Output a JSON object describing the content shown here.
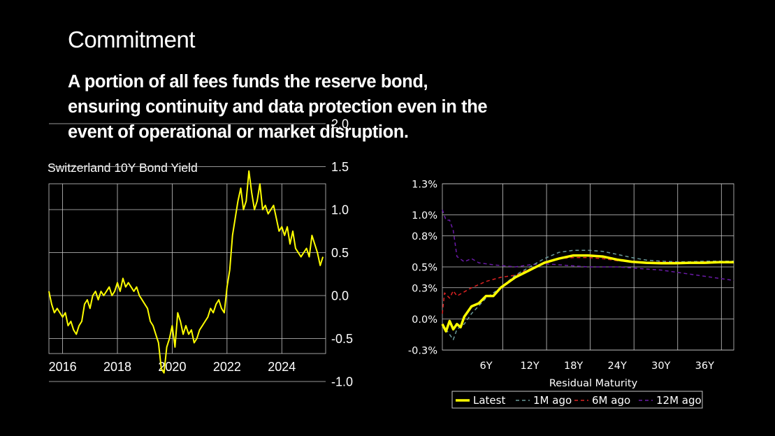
{
  "slide": {
    "title": "Commitment",
    "body": "A portion of all fees funds the reserve bond, ensuring continuity and data protection even in the event of operational or market disruption."
  },
  "colors": {
    "background": "#000000",
    "latest": "#ffff00",
    "m1": "#6a9a9a",
    "m6": "#dd2222",
    "m12": "#6a1aa8"
  },
  "chart_data": [
    {
      "type": "line",
      "title": "Switzerland 10Y Bond Yield",
      "xlim": [
        2015.5,
        2025.6
      ],
      "ylim": [
        -1.3,
        2.6
      ],
      "x_ticks": [
        2016,
        2018,
        2020,
        2022,
        2024
      ],
      "x_tick_labels": [
        "2016",
        "2018",
        "2020",
        "2022",
        "2024"
      ],
      "y_ticks": [
        2.0,
        1.5,
        1.0,
        0.5,
        0.0,
        -0.5,
        -1.0
      ],
      "y_tick_labels": [
        "2.0",
        "1.5",
        "1.0",
        "0.5",
        "0.0",
        "-0.5",
        "-1.0"
      ],
      "grid": true,
      "series": [
        {
          "color": "#ffff00",
          "x": [
            2015.5,
            2015.6,
            2015.7,
            2015.8,
            2015.9,
            2016.0,
            2016.1,
            2016.2,
            2016.3,
            2016.4,
            2016.5,
            2016.6,
            2016.7,
            2016.8,
            2016.9,
            2017.0,
            2017.1,
            2017.2,
            2017.3,
            2017.4,
            2017.5,
            2017.6,
            2017.7,
            2017.8,
            2017.9,
            2018.0,
            2018.1,
            2018.2,
            2018.3,
            2018.4,
            2018.5,
            2018.6,
            2018.7,
            2018.8,
            2018.9,
            2019.0,
            2019.1,
            2019.2,
            2019.3,
            2019.4,
            2019.5,
            2019.6,
            2019.7,
            2019.8,
            2019.9,
            2020.0,
            2020.1,
            2020.2,
            2020.3,
            2020.4,
            2020.5,
            2020.6,
            2020.7,
            2020.8,
            2020.9,
            2021.0,
            2021.1,
            2021.2,
            2021.3,
            2021.4,
            2021.5,
            2021.6,
            2021.7,
            2021.8,
            2021.9,
            2022.0,
            2022.1,
            2022.2,
            2022.3,
            2022.4,
            2022.5,
            2022.6,
            2022.7,
            2022.8,
            2022.9,
            2023.0,
            2023.1,
            2023.2,
            2023.3,
            2023.4,
            2023.5,
            2023.6,
            2023.7,
            2023.8,
            2023.9,
            2024.0,
            2024.1,
            2024.2,
            2024.3,
            2024.4,
            2024.5,
            2024.6,
            2024.7,
            2024.8,
            2024.9,
            2025.0,
            2025.1,
            2025.2,
            2025.3,
            2025.4,
            2025.5
          ],
          "y": [
            0.05,
            -0.1,
            -0.2,
            -0.15,
            -0.2,
            -0.25,
            -0.2,
            -0.35,
            -0.3,
            -0.4,
            -0.45,
            -0.35,
            -0.3,
            -0.1,
            -0.05,
            -0.15,
            0.0,
            0.05,
            -0.05,
            0.05,
            0.0,
            0.05,
            0.1,
            0.0,
            0.05,
            0.15,
            0.05,
            0.2,
            0.1,
            0.15,
            0.1,
            0.05,
            0.1,
            0.0,
            -0.05,
            -0.1,
            -0.15,
            -0.3,
            -0.35,
            -0.45,
            -0.55,
            -0.85,
            -0.9,
            -0.6,
            -0.5,
            -0.35,
            -0.6,
            -0.2,
            -0.3,
            -0.45,
            -0.35,
            -0.45,
            -0.4,
            -0.55,
            -0.5,
            -0.4,
            -0.35,
            -0.3,
            -0.25,
            -0.15,
            -0.2,
            -0.1,
            -0.05,
            -0.15,
            -0.2,
            0.1,
            0.3,
            0.7,
            0.9,
            1.1,
            1.25,
            1.0,
            1.1,
            1.45,
            1.2,
            1.0,
            1.1,
            1.3,
            1.0,
            1.05,
            0.95,
            1.0,
            1.05,
            0.9,
            0.75,
            0.8,
            0.7,
            0.8,
            0.6,
            0.75,
            0.55,
            0.5,
            0.45,
            0.5,
            0.55,
            0.45,
            0.7,
            0.6,
            0.5,
            0.35,
            0.45
          ]
        }
      ]
    },
    {
      "type": "line",
      "title": "",
      "xlabel": "Residual Maturity",
      "xlim": [
        0,
        40
      ],
      "ylim": [
        -0.3,
        1.3
      ],
      "x_ticks": [
        6,
        12,
        18,
        24,
        30,
        36
      ],
      "x_tick_labels": [
        "6Y",
        "12Y",
        "18Y",
        "24Y",
        "30Y",
        "36Y"
      ],
      "y_ticks": [
        1.3,
        1.0,
        0.8,
        0.5,
        0.3,
        0.0,
        -0.3
      ],
      "y_tick_labels": [
        "1.3%",
        "1.0%",
        "0.8%",
        "0.5%",
        "0.3%",
        "0.0%",
        "-0.3%"
      ],
      "grid": true,
      "legend_position": "bottom",
      "series": [
        {
          "name": "Latest",
          "color": "#ffff00",
          "dash": "solid",
          "x": [
            0,
            0.5,
            1,
            1.5,
            2,
            2.5,
            3,
            4,
            5,
            6,
            7,
            8,
            10,
            12,
            14,
            16,
            18,
            20,
            22,
            24,
            26,
            28,
            30,
            32,
            34,
            36,
            38,
            40
          ],
          "y": [
            -0.05,
            -0.12,
            -0.02,
            -0.1,
            -0.05,
            -0.08,
            0.02,
            0.12,
            0.15,
            0.22,
            0.22,
            0.3,
            0.4,
            0.47,
            0.54,
            0.58,
            0.61,
            0.61,
            0.6,
            0.57,
            0.55,
            0.54,
            0.535,
            0.535,
            0.54,
            0.54,
            0.545,
            0.545
          ]
        },
        {
          "name": "1M ago",
          "color": "#6a9a9a",
          "dash": "dashed",
          "x": [
            0,
            1,
            1.5,
            2,
            3,
            4,
            6,
            8,
            10,
            12,
            14,
            16,
            18,
            20,
            22,
            24,
            26,
            28,
            30,
            32,
            34,
            36,
            38,
            40
          ],
          "y": [
            -0.05,
            -0.15,
            -0.2,
            -0.1,
            -0.05,
            0.05,
            0.2,
            0.3,
            0.42,
            0.5,
            0.58,
            0.64,
            0.66,
            0.66,
            0.65,
            0.62,
            0.59,
            0.565,
            0.555,
            0.55,
            0.55,
            0.555,
            0.555,
            0.555
          ]
        },
        {
          "name": "6M ago",
          "color": "#dd2222",
          "dash": "dashed",
          "x": [
            0,
            0.3,
            1,
            1.5,
            2,
            4,
            6,
            8,
            10,
            12,
            14,
            16,
            18,
            20,
            22,
            24,
            26,
            28,
            30,
            32,
            34,
            36,
            38,
            40
          ],
          "y": [
            0.05,
            0.25,
            0.2,
            0.27,
            0.22,
            0.3,
            0.36,
            0.4,
            0.42,
            0.48,
            0.54,
            0.58,
            0.59,
            0.59,
            0.58,
            0.56,
            0.55,
            0.545,
            0.545,
            0.545,
            0.545,
            0.55,
            0.55,
            0.55
          ]
        },
        {
          "name": "12M ago",
          "color": "#6a1aa8",
          "dash": "dashed",
          "x": [
            0,
            0.5,
            1,
            1.5,
            2,
            3,
            4,
            5,
            7,
            10,
            12,
            14,
            16,
            18,
            20,
            22,
            24,
            26,
            28,
            30,
            32,
            34,
            36,
            38,
            40
          ],
          "y": [
            1.05,
            0.95,
            0.95,
            0.85,
            0.6,
            0.55,
            0.58,
            0.54,
            0.52,
            0.5,
            0.52,
            0.53,
            0.52,
            0.51,
            0.5,
            0.5,
            0.5,
            0.49,
            0.48,
            0.47,
            0.45,
            0.43,
            0.41,
            0.39,
            0.37
          ]
        }
      ]
    }
  ]
}
